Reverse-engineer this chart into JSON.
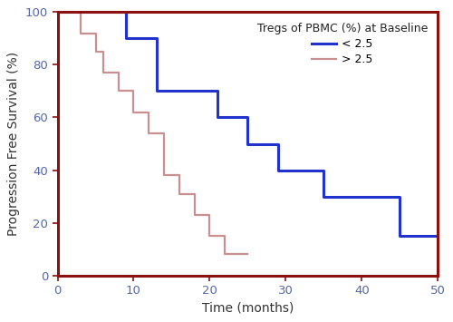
{
  "title": "Tregs of PBMC (%) at Baseline",
  "xlabel": "Time (months)",
  "ylabel": "Progression Free Survival (%)",
  "xlim": [
    0,
    50
  ],
  "ylim": [
    0,
    100
  ],
  "xticks": [
    0,
    10,
    20,
    30,
    40,
    50
  ],
  "yticks": [
    0,
    20,
    40,
    60,
    80,
    100
  ],
  "group1_label": "< 2.5",
  "group2_label": "> 2.5",
  "group1_color": "#2233cc",
  "group2_color": "#c89090",
  "border_color": "#8b1010",
  "background_color": "#ffffff",
  "group1_times": [
    0,
    3,
    9,
    9,
    13,
    13,
    21,
    21,
    25,
    25,
    29,
    29,
    35,
    35,
    45,
    45,
    50
  ],
  "group1_surv": [
    100,
    100,
    100,
    90,
    90,
    70,
    70,
    60,
    60,
    50,
    50,
    40,
    40,
    30,
    30,
    15,
    15
  ],
  "group2_times": [
    0,
    2,
    3,
    4,
    5,
    6,
    6,
    7,
    8,
    9,
    10,
    11,
    12,
    13,
    14,
    14,
    15,
    16,
    17,
    18,
    19,
    20,
    21,
    22,
    23,
    25
  ],
  "group2_surv": [
    100,
    100,
    92,
    92,
    85,
    85,
    77,
    77,
    70,
    70,
    62,
    62,
    54,
    54,
    46,
    38,
    38,
    31,
    31,
    23,
    23,
    15,
    15,
    8,
    8,
    8
  ],
  "figsize": [
    5.0,
    3.55
  ],
  "dpi": 100
}
